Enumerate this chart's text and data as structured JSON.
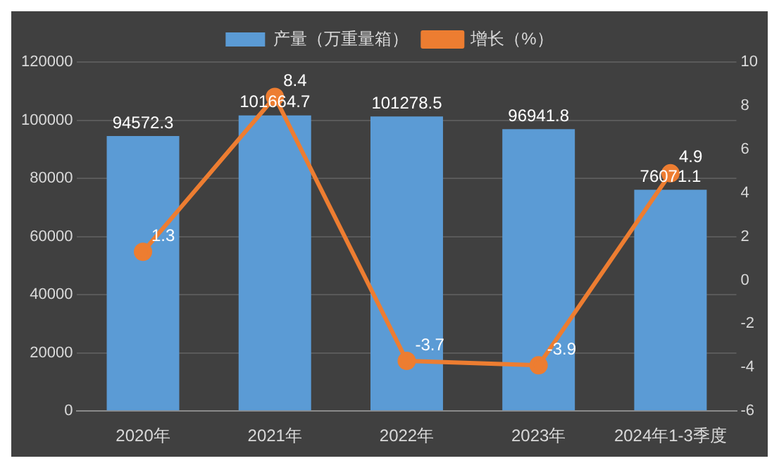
{
  "chart_data": {
    "type": "bar",
    "categories": [
      "2020年",
      "2021年",
      "2022年",
      "2023年",
      "2024年1-3季度"
    ],
    "series": [
      {
        "name": "产量（万重量箱）",
        "color": "#5b9bd5",
        "values": [
          94572.3,
          101664.7,
          101278.5,
          96941.8,
          76071.1
        ]
      },
      {
        "name": "增长（%）",
        "type": "line",
        "axis": "y2",
        "color": "#ed7d31",
        "values": [
          1.3,
          8.4,
          -3.7,
          -3.9,
          4.9
        ]
      }
    ],
    "ylim": [
      0,
      120000
    ],
    "yticks": [
      0,
      20000,
      40000,
      60000,
      80000,
      100000,
      120000
    ],
    "y2lim": [
      -6,
      10
    ],
    "y2ticks": [
      -6,
      -4,
      -2,
      0,
      2,
      4,
      6,
      8,
      10
    ],
    "grid": "y",
    "legend": "top",
    "marker": "circle",
    "data_labels": true
  }
}
